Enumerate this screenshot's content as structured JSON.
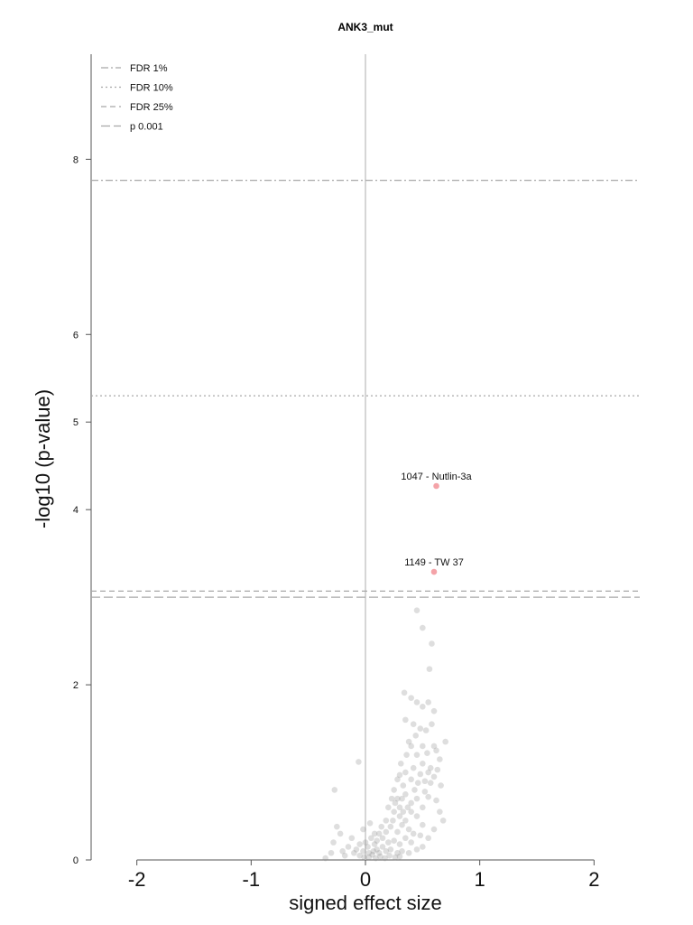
{
  "chart_data": {
    "type": "scatter",
    "title": "ANK3_mut",
    "xlabel": "signed effect size",
    "ylabel": "-log10 (p-value)",
    "xlim": [
      -2.4,
      2.4
    ],
    "ylim": [
      0,
      9.2
    ],
    "x_ticks": [
      -2,
      -1,
      0,
      1,
      2
    ],
    "x_tick_labels": [
      "-2",
      "-1",
      "0",
      "1",
      "2"
    ],
    "y_ticks": [
      0,
      2,
      4,
      5,
      6,
      8
    ],
    "y_tick_labels": [
      "0",
      "2",
      "4",
      "5",
      "6",
      "8"
    ],
    "grid": false,
    "legend_position": "top-left",
    "reference_lines": [
      {
        "label": "FDR 1%",
        "y": 7.76,
        "style": "dashdot"
      },
      {
        "label": "FDR 10%",
        "y": 5.3,
        "style": "dotted"
      },
      {
        "label": "FDR 25%",
        "y": 3.07,
        "style": "dashed"
      },
      {
        "label": "p 0.001",
        "y": 3.0,
        "style": "longdash"
      }
    ],
    "highlighted_points": [
      {
        "label": "1047 - Nutlin-3a",
        "x": 0.62,
        "y": 4.27,
        "color": "#f4a3a8"
      },
      {
        "label": "1149 - TW 37",
        "x": 0.6,
        "y": 3.29,
        "color": "#f4a3a8"
      }
    ],
    "background_points": [
      [
        0.45,
        2.85
      ],
      [
        0.5,
        2.65
      ],
      [
        0.58,
        2.47
      ],
      [
        0.56,
        2.18
      ],
      [
        0.34,
        1.91
      ],
      [
        0.4,
        1.85
      ],
      [
        0.45,
        1.8
      ],
      [
        0.5,
        1.75
      ],
      [
        0.55,
        1.8
      ],
      [
        0.6,
        1.7
      ],
      [
        0.35,
        1.6
      ],
      [
        0.42,
        1.55
      ],
      [
        0.48,
        1.5
      ],
      [
        0.53,
        1.48
      ],
      [
        0.58,
        1.55
      ],
      [
        0.7,
        1.35
      ],
      [
        0.62,
        1.25
      ],
      [
        0.65,
        1.15
      ],
      [
        0.38,
        1.35
      ],
      [
        0.45,
        1.2
      ],
      [
        0.5,
        1.1
      ],
      [
        0.55,
        1.0
      ],
      [
        0.42,
        1.05
      ],
      [
        0.48,
        0.98
      ],
      [
        0.52,
        0.9
      ],
      [
        0.6,
        0.95
      ],
      [
        0.35,
        1.0
      ],
      [
        0.4,
        0.92
      ],
      [
        0.33,
        0.85
      ],
      [
        0.3,
        0.97
      ],
      [
        0.25,
        0.8
      ],
      [
        0.28,
        0.7
      ],
      [
        0.35,
        0.75
      ],
      [
        0.4,
        0.65
      ],
      [
        0.45,
        0.7
      ],
      [
        0.5,
        0.6
      ],
      [
        0.55,
        0.72
      ],
      [
        0.62,
        0.68
      ],
      [
        0.66,
        0.85
      ],
      [
        0.2,
        0.6
      ],
      [
        0.25,
        0.55
      ],
      [
        0.3,
        0.5
      ],
      [
        0.35,
        0.45
      ],
      [
        0.4,
        0.55
      ],
      [
        0.45,
        0.5
      ],
      [
        0.5,
        0.4
      ],
      [
        0.18,
        0.45
      ],
      [
        0.22,
        0.38
      ],
      [
        0.28,
        0.32
      ],
      [
        0.32,
        0.4
      ],
      [
        0.38,
        0.35
      ],
      [
        0.42,
        0.3
      ],
      [
        0.48,
        0.28
      ],
      [
        0.12,
        0.3
      ],
      [
        0.15,
        0.25
      ],
      [
        0.2,
        0.2
      ],
      [
        0.25,
        0.22
      ],
      [
        0.3,
        0.18
      ],
      [
        0.35,
        0.25
      ],
      [
        0.4,
        0.2
      ],
      [
        0.05,
        0.25
      ],
      [
        0.08,
        0.18
      ],
      [
        0.1,
        0.12
      ],
      [
        0.12,
        0.08
      ],
      [
        0.15,
        0.15
      ],
      [
        0.18,
        0.1
      ],
      [
        0.22,
        0.12
      ],
      [
        0.28,
        0.08
      ],
      [
        0.32,
        0.1
      ],
      [
        0.0,
        0.2
      ],
      [
        0.02,
        0.15
      ],
      [
        -0.02,
        0.1
      ],
      [
        -0.05,
        0.18
      ],
      [
        -0.08,
        0.12
      ],
      [
        -0.1,
        0.08
      ],
      [
        -0.12,
        0.25
      ],
      [
        -0.15,
        0.15
      ],
      [
        -0.18,
        0.05
      ],
      [
        -0.2,
        0.1
      ],
      [
        -0.22,
        0.3
      ],
      [
        -0.25,
        0.38
      ],
      [
        -0.28,
        0.2
      ],
      [
        -0.3,
        0.08
      ],
      [
        -0.35,
        0.02
      ],
      [
        -0.05,
        0.05
      ],
      [
        0.03,
        0.03
      ],
      [
        0.06,
        0.06
      ],
      [
        0.09,
        0.02
      ],
      [
        0.13,
        0.04
      ],
      [
        0.17,
        0.02
      ],
      [
        0.21,
        0.05
      ],
      [
        0.26,
        0.03
      ],
      [
        0.3,
        0.04
      ],
      [
        -0.02,
        0.35
      ],
      [
        0.04,
        0.42
      ],
      [
        0.08,
        0.3
      ],
      [
        -0.06,
        1.12
      ],
      [
        -0.27,
        0.8
      ],
      [
        0.65,
        0.55
      ],
      [
        0.68,
        0.45
      ],
      [
        0.6,
        0.35
      ],
      [
        0.55,
        0.25
      ],
      [
        0.5,
        0.15
      ],
      [
        0.45,
        0.12
      ],
      [
        0.38,
        0.08
      ],
      [
        0.3,
        0.6
      ],
      [
        0.33,
        0.55
      ],
      [
        0.37,
        0.6
      ],
      [
        0.43,
        0.8
      ],
      [
        0.46,
        0.88
      ],
      [
        0.52,
        0.78
      ],
      [
        0.57,
        0.88
      ],
      [
        0.28,
        0.92
      ],
      [
        0.31,
        1.1
      ],
      [
        0.36,
        1.2
      ],
      [
        0.4,
        1.3
      ],
      [
        0.44,
        1.42
      ],
      [
        0.5,
        1.3
      ],
      [
        0.54,
        1.22
      ],
      [
        0.6,
        1.3
      ],
      [
        0.57,
        1.05
      ],
      [
        0.63,
        1.03
      ],
      [
        0.23,
        0.7
      ],
      [
        0.26,
        0.65
      ],
      [
        0.32,
        0.7
      ],
      [
        0.14,
        0.38
      ],
      [
        0.18,
        0.32
      ],
      [
        0.24,
        0.45
      ],
      [
        0.1,
        0.22
      ],
      [
        0.07,
        0.1
      ],
      [
        0.03,
        0.08
      ],
      [
        -0.01,
        0.03
      ]
    ],
    "background_color": "#8a8a8a"
  }
}
